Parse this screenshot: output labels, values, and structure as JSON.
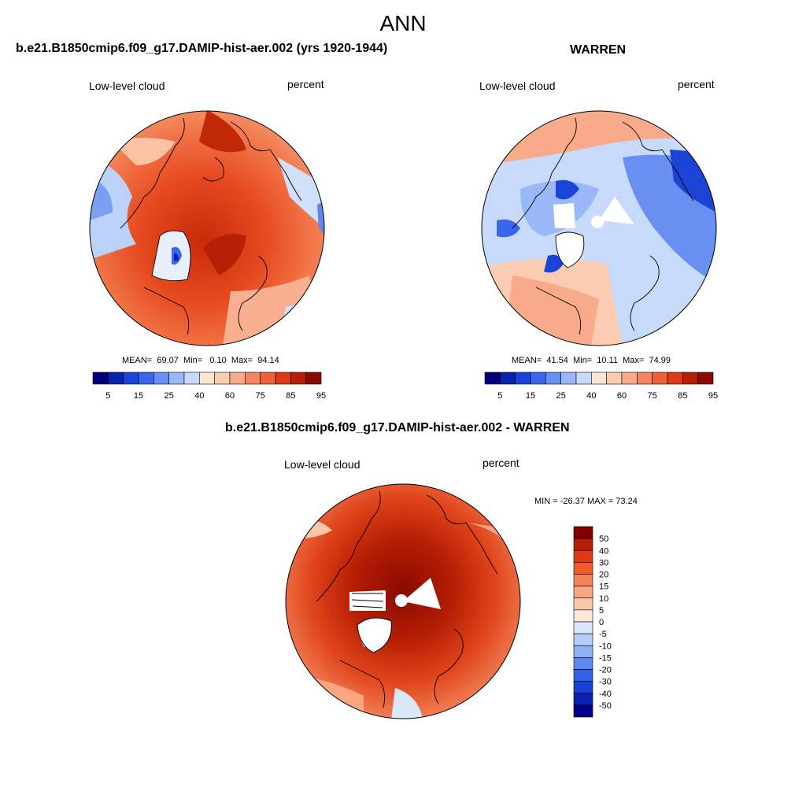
{
  "figure": {
    "title": "ANN"
  },
  "panels": [
    {
      "title": "b.e21.B1850cmip6.f09_g17.DAMIP-hist-aer.002 (yrs 1920-1944)",
      "left_label": "Low-level cloud",
      "right_label": "percent",
      "stats": {
        "mean_label": "MEAN=",
        "mean": "69.07",
        "min_label": "Min=",
        "min": "0.10",
        "max_label": "Max=",
        "max": "94.14"
      }
    },
    {
      "title": "WARREN",
      "left_label": "Low-level cloud",
      "right_label": "percent",
      "stats": {
        "mean_label": "MEAN=",
        "mean": "41.54",
        "min_label": "Min=",
        "min": "10.11",
        "max_label": "Max=",
        "max": "74.99"
      }
    },
    {
      "title": "b.e21.B1850cmip6.f09_g17.DAMIP-hist-aer.002 - WARREN",
      "left_label": "Low-level cloud",
      "right_label": "percent",
      "minmax": "MIN = -26.37 MAX =  73.24"
    }
  ],
  "colorbar_abs": {
    "colors": [
      "#00007f",
      "#0a23a8",
      "#1a44d6",
      "#3a66ee",
      "#6a8ff3",
      "#9ab7f7",
      "#c7daf9",
      "#fde6d6",
      "#fbcbb2",
      "#f8aa8a",
      "#f68660",
      "#ef6238",
      "#dc3a14",
      "#b71e06",
      "#8a0a00"
    ],
    "tick_labels": [
      "5",
      "15",
      "25",
      "40",
      "60",
      "75",
      "85",
      "95"
    ]
  },
  "colorbar_diff": {
    "colors": [
      "#800000",
      "#b51d04",
      "#dc3a14",
      "#f25a2a",
      "#f6825a",
      "#f9a582",
      "#fbc7a9",
      "#fde9db",
      "#dbe8fb",
      "#b6ccf6",
      "#8fb0f2",
      "#6088ec",
      "#3462e6",
      "#1840d2",
      "#0a20b0",
      "#000088"
    ],
    "tick_labels": [
      "50",
      "40",
      "30",
      "20",
      "15",
      "10",
      "5",
      "0",
      "-5",
      "-10",
      "-15",
      "-20",
      "-30",
      "-40",
      "-50"
    ]
  }
}
